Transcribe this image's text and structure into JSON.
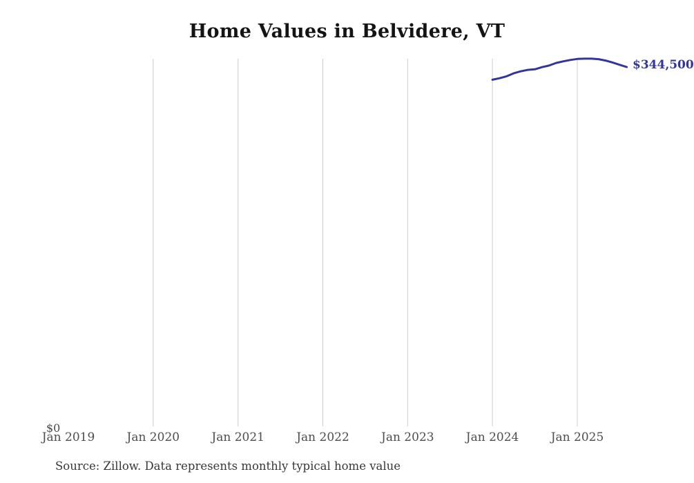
{
  "header": {
    "title": "Home Values in Belvidere, VT"
  },
  "footer": {
    "source_note": "Source: Zillow. Data represents monthly typical home value"
  },
  "chart_data": {
    "type": "line",
    "title": "Home Values in Belvidere, VT",
    "xlabel": "",
    "ylabel": "",
    "legend": "none",
    "grid": "vertical-only",
    "x": [
      "2024-01",
      "2024-02",
      "2024-03",
      "2024-04",
      "2024-05",
      "2024-06",
      "2024-07",
      "2024-08",
      "2024-09",
      "2024-10",
      "2024-11",
      "2024-12",
      "2025-01",
      "2025-02",
      "2025-03",
      "2025-04",
      "2025-05",
      "2025-06",
      "2025-07",
      "2025-08"
    ],
    "series": [
      {
        "name": "Monthly typical home value",
        "color": "#34349a",
        "values": [
          332400,
          333800,
          335700,
          338500,
          340400,
          341800,
          342300,
          344400,
          345900,
          348400,
          349900,
          351200,
          352200,
          352500,
          352500,
          352000,
          350700,
          348800,
          346600,
          344500
        ]
      }
    ],
    "end_label": "$344,500",
    "y_axis": {
      "min": 0,
      "min_label": "$0",
      "max_estimate": 370000
    },
    "x_axis": {
      "ticks": [
        {
          "label": "Jan 2019",
          "year": 2019
        },
        {
          "label": "Jan 2020",
          "year": 2020
        },
        {
          "label": "Jan 2021",
          "year": 2021
        },
        {
          "label": "Jan 2022",
          "year": 2022
        },
        {
          "label": "Jan 2023",
          "year": 2023
        },
        {
          "label": "Jan 2024",
          "year": 2024
        },
        {
          "label": "Jan 2025",
          "year": 2025
        }
      ]
    },
    "gridlines": {
      "vertical_years": [
        2020,
        2021,
        2022,
        2023,
        2024,
        2025
      ],
      "color": "#cccccc"
    }
  }
}
